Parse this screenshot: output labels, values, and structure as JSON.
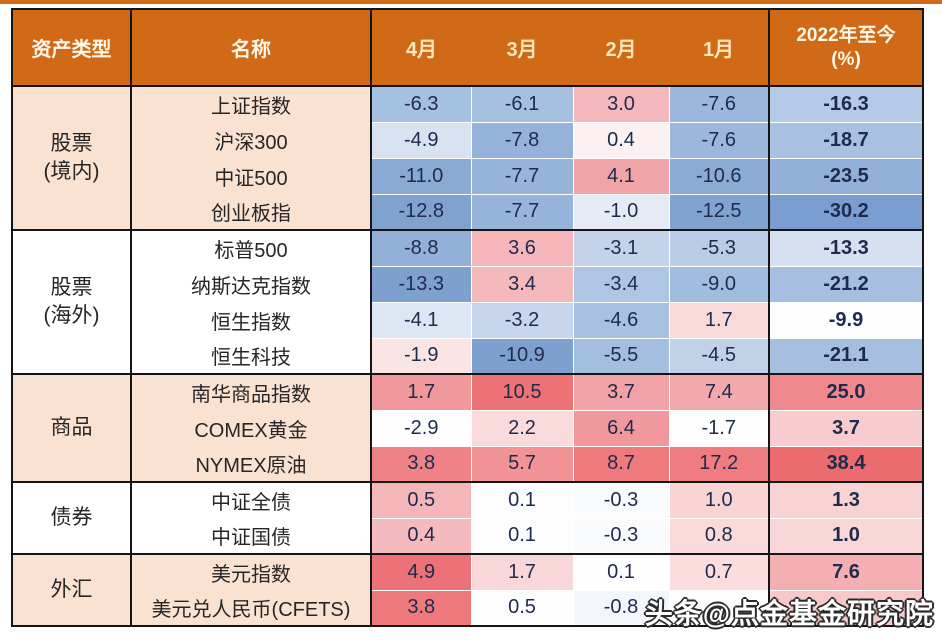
{
  "page": {
    "top_strip_color": "#D06A16",
    "background": "#FFFFFF"
  },
  "watermark": {
    "text": "头条@点金基金研究院"
  },
  "table": {
    "header": {
      "asset_type": "资产类型",
      "name": "名称",
      "months": [
        "4月",
        "3月",
        "2月",
        "1月"
      ],
      "ytd_line1": "2022年至今",
      "ytd_line2": "(%)"
    },
    "colors": {
      "header_bg": "#D06A16",
      "header_text": "#FFF7EA",
      "month_text": "#FFE8BC",
      "border": "#151515",
      "value_text": "#1E2B4D"
    },
    "groups": [
      {
        "label_lines": [
          "股票",
          "(境内)"
        ],
        "bg": "#FAE2D2",
        "rows": [
          {
            "name": "上证指数",
            "cells": [
              {
                "v": "-6.3",
                "bg": "#A6C0E2"
              },
              {
                "v": "-6.1",
                "bg": "#A6C0E2"
              },
              {
                "v": "3.0",
                "bg": "#F5B9BD"
              },
              {
                "v": "-7.6",
                "bg": "#9BB7DC"
              },
              {
                "v": "-16.3",
                "bg": "#B4CAE6"
              }
            ]
          },
          {
            "name": "沪深300",
            "cells": [
              {
                "v": "-4.9",
                "bg": "#D8E2F0"
              },
              {
                "v": "-7.8",
                "bg": "#95B3DA"
              },
              {
                "v": "0.4",
                "bg": "#FBF1F2"
              },
              {
                "v": "-7.6",
                "bg": "#9BB7DC"
              },
              {
                "v": "-18.7",
                "bg": "#A9C1E1"
              }
            ]
          },
          {
            "name": "中证500",
            "cells": [
              {
                "v": "-11.0",
                "bg": "#8AAAD3"
              },
              {
                "v": "-7.7",
                "bg": "#97B4DA"
              },
              {
                "v": "4.1",
                "bg": "#F1A5A9"
              },
              {
                "v": "-10.6",
                "bg": "#8BABD4"
              },
              {
                "v": "-23.5",
                "bg": "#93B1D8"
              }
            ]
          },
          {
            "name": "创业板指",
            "cells": [
              {
                "v": "-12.8",
                "bg": "#7FA2CF"
              },
              {
                "v": "-7.7",
                "bg": "#97B4DA"
              },
              {
                "v": "-1.0",
                "bg": "#E4EBF5"
              },
              {
                "v": "-12.5",
                "bg": "#80A3D0"
              },
              {
                "v": "-30.2",
                "bg": "#7B9ED0"
              }
            ]
          }
        ]
      },
      {
        "label_lines": [
          "股票",
          "(海外)"
        ],
        "bg": "#FFFFFF",
        "rows": [
          {
            "name": "标普500",
            "cells": [
              {
                "v": "-8.8",
                "bg": "#93B1D8"
              },
              {
                "v": "3.6",
                "bg": "#F5B6B9"
              },
              {
                "v": "-3.1",
                "bg": "#C2D3EA"
              },
              {
                "v": "-5.3",
                "bg": "#BACCE6"
              },
              {
                "v": "-13.3",
                "bg": "#D5E0F0"
              }
            ]
          },
          {
            "name": "纳斯达克指数",
            "cells": [
              {
                "v": "-13.3",
                "bg": "#7DA0CE"
              },
              {
                "v": "3.4",
                "bg": "#F5B8BB"
              },
              {
                "v": "-3.4",
                "bg": "#AEC6E4"
              },
              {
                "v": "-9.0",
                "bg": "#A0BCDE"
              },
              {
                "v": "-21.2",
                "bg": "#A6BFE0"
              }
            ]
          },
          {
            "name": "恒生指数",
            "cells": [
              {
                "v": "-4.1",
                "bg": "#DDE6F3"
              },
              {
                "v": "-3.2",
                "bg": "#C7D6EC"
              },
              {
                "v": "-4.6",
                "bg": "#A8C1E1"
              },
              {
                "v": "1.7",
                "bg": "#F9DADB"
              },
              {
                "v": "-9.9",
                "bg": "#FDFDFE"
              }
            ]
          },
          {
            "name": "恒生科技",
            "cells": [
              {
                "v": "-1.9",
                "bg": "#FBE4E4"
              },
              {
                "v": "-10.9",
                "bg": "#7DA0CE"
              },
              {
                "v": "-5.5",
                "bg": "#A3BEDF"
              },
              {
                "v": "-4.5",
                "bg": "#C0D1E8"
              },
              {
                "v": "-21.1",
                "bg": "#A6BFE0"
              }
            ]
          }
        ]
      },
      {
        "label_lines": [
          "商品"
        ],
        "bg": "#FAE2D2",
        "rows": [
          {
            "name": "南华商品指数",
            "cells": [
              {
                "v": "1.7",
                "bg": "#F1989C"
              },
              {
                "v": "10.5",
                "bg": "#ED7276"
              },
              {
                "v": "3.7",
                "bg": "#F2A2A6"
              },
              {
                "v": "7.4",
                "bg": "#F3A8AC"
              },
              {
                "v": "25.0",
                "bg": "#F0898D"
              }
            ]
          },
          {
            "name": "COMEX黄金",
            "cells": [
              {
                "v": "-2.9",
                "bg": "#FEFEFE"
              },
              {
                "v": "2.2",
                "bg": "#FADBDC"
              },
              {
                "v": "6.4",
                "bg": "#F1989C"
              },
              {
                "v": "-1.7",
                "bg": "#FEFEFE"
              },
              {
                "v": "3.7",
                "bg": "#F8CBCE"
              }
            ]
          },
          {
            "name": "NYMEX原油",
            "cells": [
              {
                "v": "3.8",
                "bg": "#EF8286"
              },
              {
                "v": "5.7",
                "bg": "#F29397"
              },
              {
                "v": "8.7",
                "bg": "#EE7A7E"
              },
              {
                "v": "17.2",
                "bg": "#EE7C80"
              },
              {
                "v": "38.4",
                "bg": "#EC6B6F"
              }
            ]
          }
        ]
      },
      {
        "label_lines": [
          "债券"
        ],
        "bg": "#FFFFFF",
        "rows": [
          {
            "name": "中证全债",
            "cells": [
              {
                "v": "0.5",
                "bg": "#F5B6B9"
              },
              {
                "v": "0.1",
                "bg": "#FDFDFE"
              },
              {
                "v": "-0.3",
                "bg": "#FAFBFD"
              },
              {
                "v": "1.0",
                "bg": "#F9D4D5"
              },
              {
                "v": "1.3",
                "bg": "#F9D2D4"
              }
            ]
          },
          {
            "name": "中证国债",
            "cells": [
              {
                "v": "0.4",
                "bg": "#F5BABD"
              },
              {
                "v": "0.1",
                "bg": "#FDFDFE"
              },
              {
                "v": "-0.3",
                "bg": "#FAFBFD"
              },
              {
                "v": "0.8",
                "bg": "#FADADB"
              },
              {
                "v": "1.0",
                "bg": "#F9D6D7"
              }
            ]
          }
        ]
      },
      {
        "label_lines": [
          "外汇"
        ],
        "bg": "#FAE2D2",
        "rows": [
          {
            "name": "美元指数",
            "cells": [
              {
                "v": "4.9",
                "bg": "#EC7277"
              },
              {
                "v": "1.7",
                "bg": "#F9D6D7"
              },
              {
                "v": "0.1",
                "bg": "#FEFEFE"
              },
              {
                "v": "0.7",
                "bg": "#FBDDDE"
              },
              {
                "v": "7.6",
                "bg": "#F5AFB2"
              }
            ]
          },
          {
            "name": "美元兑人民币(CFETS)",
            "cells": [
              {
                "v": "3.8",
                "bg": "#ED797D"
              },
              {
                "v": "0.5",
                "bg": "#FDFDFE"
              },
              {
                "v": "-0.8",
                "bg": "#F3F6FA"
              },
              {
                "v": "",
                "bg": "#FEFEFE"
              },
              {
                "v": "",
                "bg": "#F8C9CB"
              }
            ]
          }
        ]
      }
    ]
  },
  "chart_data": {
    "type": "table",
    "title": "资产月度表现热力表",
    "columns": [
      "资产类型",
      "名称",
      "4月",
      "3月",
      "2月",
      "1月",
      "2022年至今(%)"
    ],
    "rows": [
      [
        "股票(境内)",
        "上证指数",
        -6.3,
        -6.1,
        3.0,
        -7.6,
        -16.3
      ],
      [
        "股票(境内)",
        "沪深300",
        -4.9,
        -7.8,
        0.4,
        -7.6,
        -18.7
      ],
      [
        "股票(境内)",
        "中证500",
        -11.0,
        -7.7,
        4.1,
        -10.6,
        -23.5
      ],
      [
        "股票(境内)",
        "创业板指",
        -12.8,
        -7.7,
        -1.0,
        -12.5,
        -30.2
      ],
      [
        "股票(海外)",
        "标普500",
        -8.8,
        3.6,
        -3.1,
        -5.3,
        -13.3
      ],
      [
        "股票(海外)",
        "纳斯达克指数",
        -13.3,
        3.4,
        -3.4,
        -9.0,
        -21.2
      ],
      [
        "股票(海外)",
        "恒生指数",
        -4.1,
        -3.2,
        -4.6,
        1.7,
        -9.9
      ],
      [
        "股票(海外)",
        "恒生科技",
        -1.9,
        -10.9,
        -5.5,
        -4.5,
        -21.1
      ],
      [
        "商品",
        "南华商品指数",
        1.7,
        10.5,
        3.7,
        7.4,
        25.0
      ],
      [
        "商品",
        "COMEX黄金",
        -2.9,
        2.2,
        6.4,
        -1.7,
        3.7
      ],
      [
        "商品",
        "NYMEX原油",
        3.8,
        5.7,
        8.7,
        17.2,
        38.4
      ],
      [
        "债券",
        "中证全债",
        0.5,
        0.1,
        -0.3,
        1.0,
        1.3
      ],
      [
        "债券",
        "中证国债",
        0.4,
        0.1,
        -0.3,
        0.8,
        1.0
      ],
      [
        "外汇",
        "美元指数",
        4.9,
        1.7,
        0.1,
        0.7,
        7.6
      ],
      [
        "外汇",
        "美元兑人民币(CFETS)",
        3.8,
        0.5,
        -0.8,
        null,
        null
      ]
    ],
    "notes": "heatmap cell shading: blue = negative returns, red/pink = positive returns; last-row 1月 and 2022年至今 values occluded by watermark"
  }
}
